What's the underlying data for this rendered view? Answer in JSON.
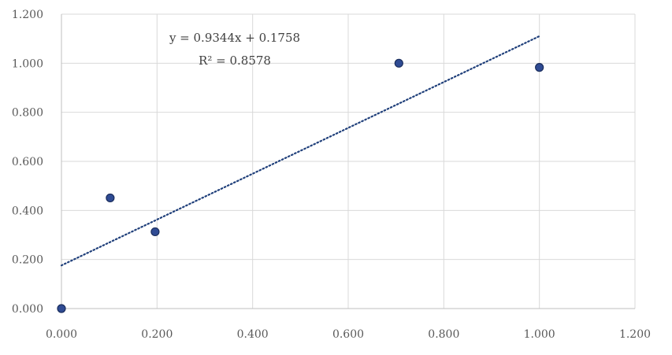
{
  "chart_data": {
    "type": "scatter",
    "title": "",
    "xlabel": "",
    "ylabel": "",
    "xlim": [
      0,
      1.2
    ],
    "ylim": [
      0,
      1.2
    ],
    "x_ticks": [
      "0.000",
      "0.200",
      "0.400",
      "0.600",
      "0.800",
      "1.000",
      "1.200"
    ],
    "y_ticks": [
      "0.000",
      "0.200",
      "0.400",
      "0.600",
      "0.800",
      "1.000",
      "1.200"
    ],
    "grid": true,
    "legend": "none",
    "series": [
      {
        "x": [
          0.0,
          0.102,
          0.196,
          0.706,
          1.0
        ],
        "y": [
          0.0,
          0.451,
          0.313,
          1.0,
          0.983
        ],
        "color": "#2f4b93"
      }
    ],
    "trendline": {
      "type": "linear",
      "slope": 0.9344,
      "intercept": 0.1758,
      "x_range": [
        0,
        1.0
      ],
      "color": "#1f3f7a",
      "equation_label": "y = 0.9344x + 0.1758",
      "r2_label": "R² = 0.8578"
    }
  }
}
